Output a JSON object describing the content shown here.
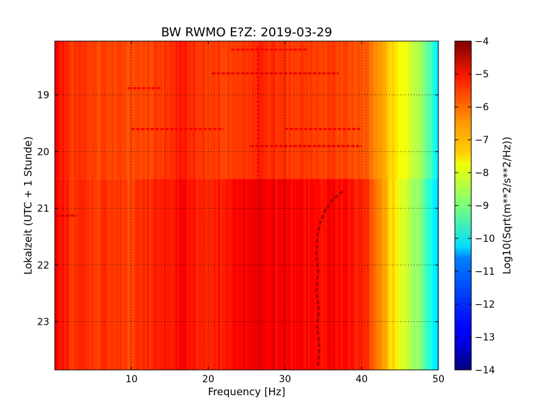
{
  "chart_data": {
    "type": "heatmap",
    "title": "BW RWMO E?Z: 2019-03-29",
    "xlabel": "Frequency [Hz]",
    "ylabel": "Lokalzeit (UTC + 1 Stunde)",
    "xlim": [
      0,
      50
    ],
    "ylim": [
      23.85,
      18.05
    ],
    "x_ticks": [
      10,
      20,
      30,
      40,
      50
    ],
    "y_ticks": [
      19,
      20,
      21,
      22,
      23
    ],
    "grid": true,
    "colormap": "jet",
    "colorbar": {
      "label": "Log10(Sqrt(m**2/s**2/Hz))",
      "range": [
        -14,
        -4
      ],
      "ticks": [
        -4,
        -5,
        -6,
        -7,
        -8,
        -9,
        -10,
        -11,
        -12,
        -13,
        -14
      ]
    },
    "regime_change_hour": 20.48,
    "spectrum_profile": {
      "freq_hz": [
        0,
        2,
        5,
        10,
        14,
        16,
        20,
        24,
        27,
        30,
        34,
        38,
        39.5,
        41,
        42,
        43,
        44,
        45,
        46,
        47,
        48,
        49,
        50
      ],
      "level_before": [
        -5.3,
        -5.7,
        -5.9,
        -6.0,
        -5.8,
        -5.5,
        -5.8,
        -5.8,
        -5.6,
        -5.8,
        -5.8,
        -5.9,
        -6.0,
        -6.3,
        -6.7,
        -7.0,
        -7.3,
        -7.7,
        -8.0,
        -8.4,
        -8.9,
        -9.6,
        -10.6
      ],
      "level_after": [
        -5.3,
        -5.6,
        -5.8,
        -5.9,
        -5.5,
        -5.3,
        -5.6,
        -5.2,
        -5.1,
        -5.2,
        -5.3,
        -5.3,
        -5.5,
        -5.9,
        -6.4,
        -6.9,
        -7.4,
        -7.9,
        -8.3,
        -8.7,
        -9.3,
        -10.0,
        -10.8
      ]
    },
    "features": [
      {
        "type": "tonal_track",
        "freq_hz": [
          37.5,
          36.2,
          35.2,
          34.6,
          34.2,
          34.1,
          34.3,
          34.1,
          34.4,
          34.2,
          34.5,
          34.3
        ],
        "hour": [
          20.7,
          20.85,
          21.05,
          21.25,
          21.5,
          21.8,
          22.1,
          22.45,
          22.8,
          23.1,
          23.45,
          23.8
        ],
        "level": -4.4
      },
      {
        "type": "line",
        "freq_hz": 26.5,
        "hour_range": [
          18.15,
          20.48
        ],
        "level": -5.0
      },
      {
        "type": "band",
        "freq_hz": [
          20.5,
          37.0
        ],
        "hour": 18.62,
        "level": -5.0
      },
      {
        "type": "band",
        "freq_hz": [
          25.5,
          40.0
        ],
        "hour": 19.9,
        "level": -5.0
      },
      {
        "type": "band",
        "freq_hz": [
          10.0,
          22.0
        ],
        "hour": 19.6,
        "level": -5.2
      },
      {
        "type": "band",
        "freq_hz": [
          30.0,
          40.0
        ],
        "hour": 19.6,
        "level": -5.2
      },
      {
        "type": "band",
        "freq_hz": [
          9.5,
          14.0
        ],
        "hour": 18.88,
        "level": -5.2
      },
      {
        "type": "band",
        "freq_hz": [
          23.0,
          33.0
        ],
        "hour": 18.2,
        "level": -5.2
      },
      {
        "type": "band",
        "freq_hz": [
          0.2,
          2.8
        ],
        "hour": 21.13,
        "level": -4.8
      }
    ]
  }
}
